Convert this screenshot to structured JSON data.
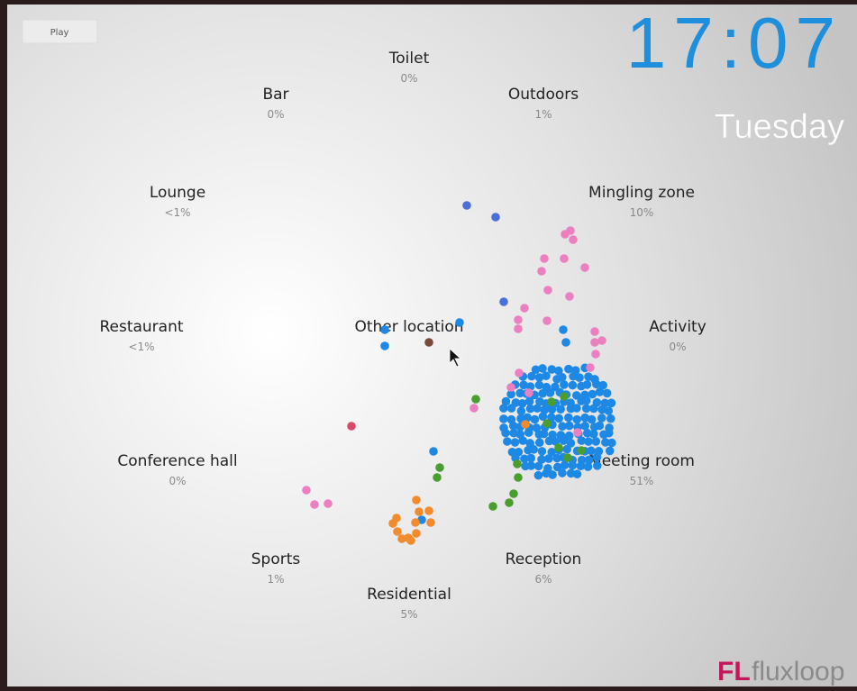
{
  "controls": {
    "play": "Play"
  },
  "clock": {
    "time": "17:07",
    "day": "Tuesday"
  },
  "locations": [
    {
      "name": "Toilet",
      "share": "0%"
    },
    {
      "name": "Bar",
      "share": "0%"
    },
    {
      "name": "Outdoors",
      "share": "1%"
    },
    {
      "name": "Lounge",
      "share": "<1%"
    },
    {
      "name": "Mingling zone",
      "share": "10%"
    },
    {
      "name": "Restaurant",
      "share": "<1%"
    },
    {
      "name": "Other location"
    },
    {
      "name": "Activity",
      "share": "0%"
    },
    {
      "name": "Conference hall",
      "share": "0%"
    },
    {
      "name": "Meeting room",
      "share": "51%"
    },
    {
      "name": "Sports",
      "share": "1%"
    },
    {
      "name": "Reception",
      "share": "6%"
    },
    {
      "name": "Residential",
      "share": "5%"
    }
  ],
  "brand": {
    "mark": "FL",
    "name": "fluxloop"
  }
}
